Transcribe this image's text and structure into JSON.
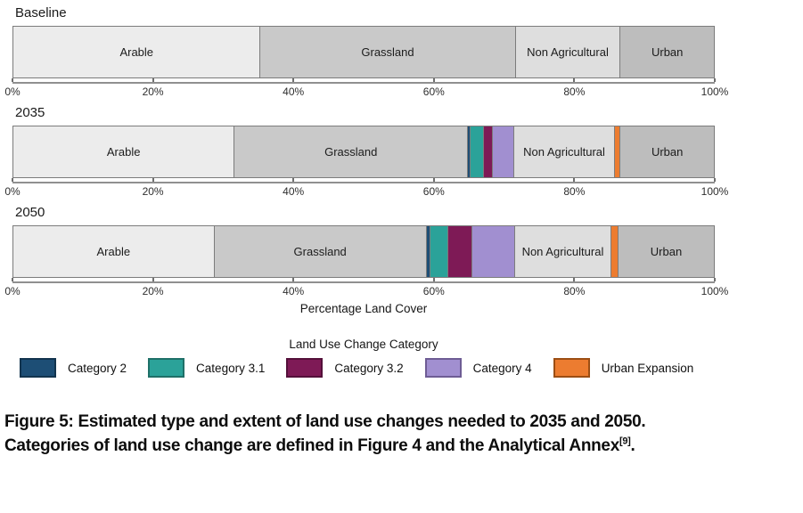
{
  "chart_data": {
    "type": "bar",
    "stacked": true,
    "orientation": "horizontal",
    "xlabel": "Percentage Land Cover",
    "xlim": [
      0,
      100
    ],
    "x_ticks": [
      "0%",
      "20%",
      "40%",
      "60%",
      "80%",
      "100%"
    ],
    "grid": false,
    "palette": {
      "Arable": {
        "fill": "#ECECEC",
        "labeled": true
      },
      "Grassland": {
        "fill": "#C9C9C9",
        "labeled": true
      },
      "Category 2": {
        "fill": "#1D4E75",
        "labeled": false
      },
      "Category 3.1": {
        "fill": "#2BA299",
        "labeled": false
      },
      "Category 3.2": {
        "fill": "#7E1A56",
        "labeled": false
      },
      "Category 4": {
        "fill": "#A18FD0",
        "labeled": false
      },
      "Non Agricultural": {
        "fill": "#DEDEDE",
        "labeled": true
      },
      "Urban Expansion": {
        "fill": "#EC7C30",
        "labeled": false
      },
      "Urban": {
        "fill": "#BDBDBD",
        "labeled": true
      }
    },
    "rows": [
      {
        "title": "Baseline",
        "segments": [
          {
            "name": "Arable",
            "value": 35.3
          },
          {
            "name": "Grassland",
            "value": 36.4
          },
          {
            "name": "Non Agricultural",
            "value": 15.0
          },
          {
            "name": "Urban",
            "value": 13.3
          }
        ]
      },
      {
        "title": "2035",
        "segments": [
          {
            "name": "Arable",
            "value": 31.6
          },
          {
            "name": "Grassland",
            "value": 33.3
          },
          {
            "name": "Category 2",
            "value": 0.4
          },
          {
            "name": "Category 3.1",
            "value": 1.9
          },
          {
            "name": "Category 3.2",
            "value": 1.3
          },
          {
            "name": "Category 4",
            "value": 3.0
          },
          {
            "name": "Non Agricultural",
            "value": 14.4
          },
          {
            "name": "Urban Expansion",
            "value": 0.8
          },
          {
            "name": "Urban",
            "value": 13.3
          }
        ]
      },
      {
        "title": "2050",
        "segments": [
          {
            "name": "Arable",
            "value": 28.7
          },
          {
            "name": "Grassland",
            "value": 30.3
          },
          {
            "name": "Category 2",
            "value": 0.6
          },
          {
            "name": "Category 3.1",
            "value": 2.5
          },
          {
            "name": "Category 3.2",
            "value": 3.4
          },
          {
            "name": "Category 4",
            "value": 6.1
          },
          {
            "name": "Non Agricultural",
            "value": 13.8
          },
          {
            "name": "Urban Expansion",
            "value": 1.0
          },
          {
            "name": "Urban",
            "value": 13.6
          }
        ]
      }
    ],
    "legend": {
      "title": "Land Use Change Category",
      "position": "bottom",
      "items": [
        {
          "label": "Category 2",
          "color": "#1D4E75",
          "border": "#12344E"
        },
        {
          "label": "Category 3.1",
          "color": "#2BA299",
          "border": "#1F7068"
        },
        {
          "label": "Category 3.2",
          "color": "#7E1A56",
          "border": "#54103A"
        },
        {
          "label": "Category 4",
          "color": "#A18FD0",
          "border": "#6E5C94"
        },
        {
          "label": "Urban Expansion",
          "color": "#EC7C30",
          "border": "#9C4E14"
        }
      ]
    }
  },
  "caption": {
    "line1": "Figure 5: Estimated type and extent of land use changes needed to 2035 and 2050.",
    "line2": "Categories of land use change are defined in Figure 4 and the Analytical Annex",
    "reference": "[9]",
    "line2_end": "."
  }
}
